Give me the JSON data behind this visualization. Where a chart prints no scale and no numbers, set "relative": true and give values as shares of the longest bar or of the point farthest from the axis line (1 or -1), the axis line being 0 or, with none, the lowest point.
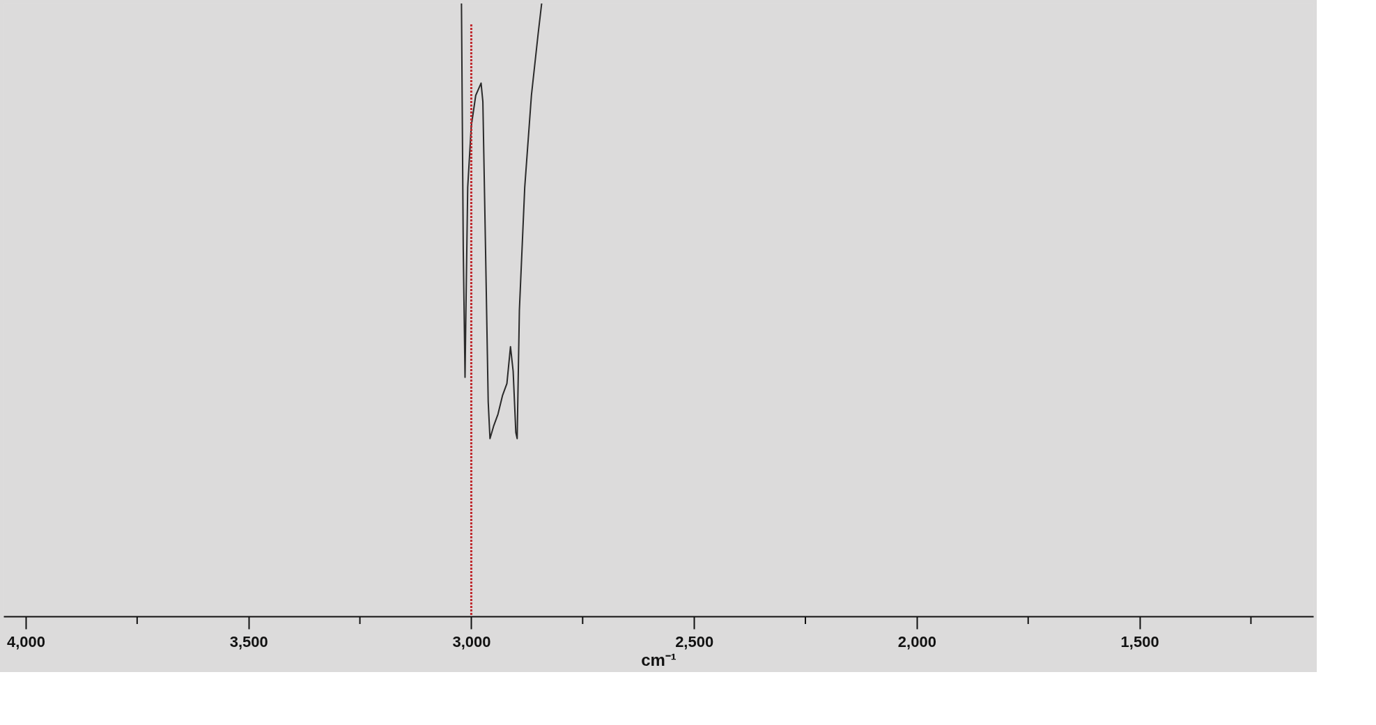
{
  "chart_data": {
    "type": "line",
    "relative": true,
    "xlabel": "cm⁻¹",
    "xlim": [
      4050,
      1110
    ],
    "xticks": [
      {
        "value": 4000,
        "label": "4,000"
      },
      {
        "value": 3750,
        "label": null
      },
      {
        "value": 3500,
        "label": "3,500"
      },
      {
        "value": 3250,
        "label": null
      },
      {
        "value": 3000,
        "label": "3,000"
      },
      {
        "value": 2750,
        "label": null
      },
      {
        "value": 2500,
        "label": "2,500"
      },
      {
        "value": 2250,
        "label": null
      },
      {
        "value": 2000,
        "label": "2,000"
      },
      {
        "value": 1750,
        "label": null
      },
      {
        "value": 1500,
        "label": "1,500"
      },
      {
        "value": 1250,
        "label": null
      }
    ],
    "series": [
      {
        "color": "#2a2a2a",
        "x": [
          3022,
          3018,
          3014,
          3012,
          3008,
          3000,
          2990,
          2978,
          2974,
          2968,
          2962,
          2958,
          2950,
          2940,
          2930,
          2920,
          2912,
          2906,
          2900,
          2897,
          2892,
          2880,
          2865,
          2850,
          2842
        ],
        "values": [
          1.0,
          0.6,
          0.39,
          0.5,
          0.7,
          0.8,
          0.85,
          0.87,
          0.84,
          0.6,
          0.35,
          0.29,
          0.31,
          0.33,
          0.36,
          0.38,
          0.44,
          0.4,
          0.3,
          0.29,
          0.5,
          0.7,
          0.85,
          0.95,
          1.0
        ]
      }
    ],
    "ref_lines": [
      {
        "axis": "x",
        "value": 3000,
        "color": "#c0282d",
        "line_style": "dotted"
      }
    ],
    "line_style": "solid"
  }
}
